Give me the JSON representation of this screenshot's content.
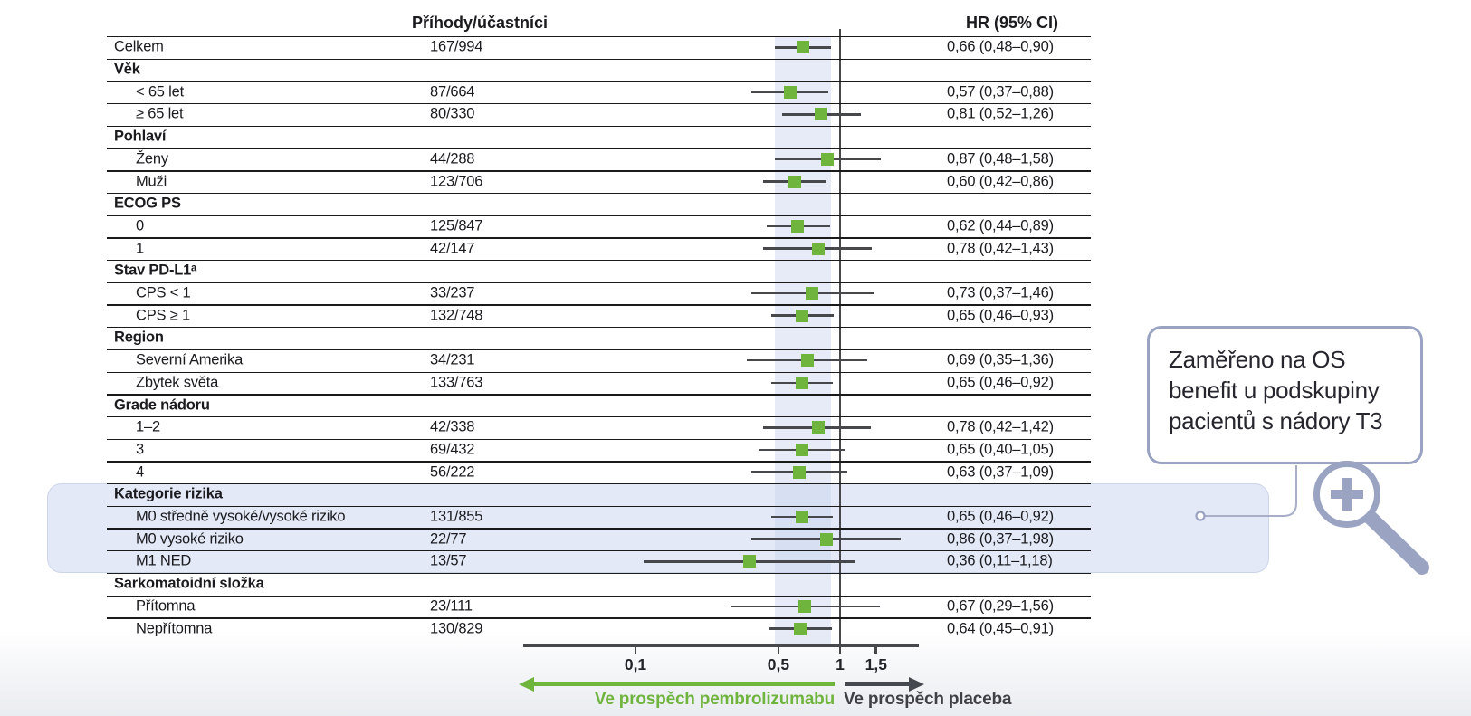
{
  "table": {
    "col_events_header": "Příhody/účastníci",
    "col_hr_header": "HR (95% CI)"
  },
  "chart_data": {
    "type": "scatter",
    "subtype": "forest-plot",
    "title": "",
    "x_axis": {
      "scale": "log",
      "ticks": [
        0.1,
        0.5,
        1,
        1.5
      ],
      "tick_labels": [
        "0,1",
        "0,5",
        "1",
        "1,5"
      ],
      "reference_line": 1.0,
      "shaded_band": [
        0.48,
        0.9
      ]
    },
    "favors_left": "Ve prospěch pembrolizumabu",
    "favors_right": "Ve prospěch placeba",
    "rows": [
      {
        "kind": "item",
        "indent": false,
        "label": "Celkem",
        "events": "167/994",
        "hr": 0.66,
        "lo": 0.48,
        "hi": 0.9,
        "hr_text": "0,66 (0,48–0,90)",
        "highlight": false
      },
      {
        "kind": "group",
        "label": "Věk",
        "highlight": false
      },
      {
        "kind": "item",
        "indent": true,
        "label": "< 65 let",
        "events": "87/664",
        "hr": 0.57,
        "lo": 0.37,
        "hi": 0.88,
        "hr_text": "0,57 (0,37–0,88)",
        "highlight": false
      },
      {
        "kind": "item",
        "indent": true,
        "label": "≥ 65 let",
        "events": "80/330",
        "hr": 0.81,
        "lo": 0.52,
        "hi": 1.26,
        "hr_text": "0,81 (0,52–1,26)",
        "highlight": false
      },
      {
        "kind": "group",
        "label": "Pohlaví",
        "highlight": false
      },
      {
        "kind": "item",
        "indent": true,
        "label": "Ženy",
        "events": "44/288",
        "hr": 0.87,
        "lo": 0.48,
        "hi": 1.58,
        "hr_text": "0,87 (0,48–1,58)",
        "highlight": false
      },
      {
        "kind": "item",
        "indent": true,
        "label": "Muži",
        "events": "123/706",
        "hr": 0.6,
        "lo": 0.42,
        "hi": 0.86,
        "hr_text": "0,60 (0,42–0,86)",
        "highlight": false
      },
      {
        "kind": "group",
        "label": "ECOG PS",
        "highlight": false
      },
      {
        "kind": "item",
        "indent": true,
        "label": "0",
        "events": "125/847",
        "hr": 0.62,
        "lo": 0.44,
        "hi": 0.89,
        "hr_text": "0,62 (0,44–0,89)",
        "highlight": false
      },
      {
        "kind": "item",
        "indent": true,
        "label": "1",
        "events": "42/147",
        "hr": 0.78,
        "lo": 0.42,
        "hi": 1.43,
        "hr_text": "0,78 (0,42–1,43)",
        "highlight": false
      },
      {
        "kind": "group",
        "label": "Stav PD-L1ᵃ",
        "highlight": false
      },
      {
        "kind": "item",
        "indent": true,
        "label": "CPS < 1",
        "events": "33/237",
        "hr": 0.73,
        "lo": 0.37,
        "hi": 1.46,
        "hr_text": "0,73 (0,37–1,46)",
        "highlight": false
      },
      {
        "kind": "item",
        "indent": true,
        "label": "CPS ≥ 1",
        "events": "132/748",
        "hr": 0.65,
        "lo": 0.46,
        "hi": 0.93,
        "hr_text": "0,65 (0,46–0,93)",
        "highlight": false
      },
      {
        "kind": "group",
        "label": "Region",
        "highlight": false
      },
      {
        "kind": "item",
        "indent": true,
        "label": "Severní Amerika",
        "events": "34/231",
        "hr": 0.69,
        "lo": 0.35,
        "hi": 1.36,
        "hr_text": "0,69 (0,35–1,36)",
        "highlight": false
      },
      {
        "kind": "item",
        "indent": true,
        "label": "Zbytek světa",
        "events": "133/763",
        "hr": 0.65,
        "lo": 0.46,
        "hi": 0.92,
        "hr_text": "0,65 (0,46–0,92)",
        "highlight": false
      },
      {
        "kind": "group",
        "label": "Grade nádoru",
        "highlight": false
      },
      {
        "kind": "item",
        "indent": true,
        "label": "1–2",
        "events": "42/338",
        "hr": 0.78,
        "lo": 0.42,
        "hi": 1.42,
        "hr_text": "0,78 (0,42–1,42)",
        "highlight": false
      },
      {
        "kind": "item",
        "indent": true,
        "label": "3",
        "events": "69/432",
        "hr": 0.65,
        "lo": 0.4,
        "hi": 1.05,
        "hr_text": "0,65 (0,40–1,05)",
        "highlight": false
      },
      {
        "kind": "item",
        "indent": true,
        "label": "4",
        "events": "56/222",
        "hr": 0.63,
        "lo": 0.37,
        "hi": 1.09,
        "hr_text": "0,63 (0,37–1,09)",
        "highlight": false
      },
      {
        "kind": "group",
        "label": "Kategorie rizika",
        "highlight": true
      },
      {
        "kind": "item",
        "indent": true,
        "label": "M0 středně vysoké/vysoké riziko",
        "events": "131/855",
        "hr": 0.65,
        "lo": 0.46,
        "hi": 0.92,
        "hr_text": "0,65 (0,46–0,92)",
        "highlight": true
      },
      {
        "kind": "item",
        "indent": true,
        "label": "M0 vysoké riziko",
        "events": "22/77",
        "hr": 0.86,
        "lo": 0.37,
        "hi": 1.98,
        "hr_text": "0,86 (0,37–1,98)",
        "highlight": true
      },
      {
        "kind": "item",
        "indent": true,
        "label": "M1 NED",
        "events": "13/57",
        "hr": 0.36,
        "lo": 0.11,
        "hi": 1.18,
        "hr_text": "0,36 (0,11–1,18)",
        "highlight": true
      },
      {
        "kind": "group",
        "label": "Sarkomatoidní složka",
        "highlight": false
      },
      {
        "kind": "item",
        "indent": true,
        "label": "Přítomna",
        "events": "23/111",
        "hr": 0.67,
        "lo": 0.29,
        "hi": 1.56,
        "hr_text": "0,67 (0,29–1,56)",
        "highlight": false
      },
      {
        "kind": "item",
        "indent": true,
        "label": "Nepřítomna",
        "events": "130/829",
        "hr": 0.64,
        "lo": 0.45,
        "hi": 0.91,
        "hr_text": "0,64 (0,45–0,91)",
        "highlight": false
      }
    ]
  },
  "callout": {
    "text": "Zaměřeno na OS benefit u podskupiny pacientů s nádory T3",
    "icon": "magnifier-plus-icon"
  },
  "colors": {
    "green": "#6fb43d",
    "dark_line": "#46484b",
    "text": "#1b1b1f",
    "band": "#e7ecf7",
    "highlight": "#e3e9f6",
    "callout_border": "#9aa3c2"
  }
}
